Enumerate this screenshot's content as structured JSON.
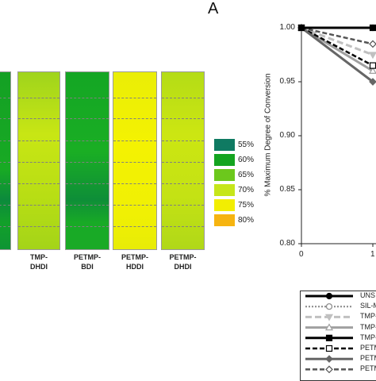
{
  "panel_label": "A",
  "chart_data": [
    {
      "type": "heatmap",
      "columns": [
        {
          "label": "",
          "stops": [
            [
              "#14a024",
              0
            ],
            [
              "#18aa24",
              0.55
            ],
            [
              "#0c8a3c",
              0.72
            ],
            [
              "#12a02a",
              0.85
            ],
            [
              "#0e9434",
              1
            ]
          ]
        },
        {
          "label": "TMP-\nDHDI",
          "stops": [
            [
              "#9fd41c",
              0
            ],
            [
              "#c8e614",
              0.35
            ],
            [
              "#b8de14",
              0.7
            ],
            [
              "#a4d418",
              1
            ]
          ]
        },
        {
          "label": "PETMP-\nBDI",
          "stops": [
            [
              "#14a624",
              0
            ],
            [
              "#1aae24",
              0.45
            ],
            [
              "#0e8e38",
              0.72
            ],
            [
              "#18aa26",
              0.85
            ],
            [
              "#1aaa26",
              1
            ]
          ]
        },
        {
          "label": "PETMP-\nHDDI",
          "stops": [
            [
              "#eaee06",
              0
            ],
            [
              "#f4f202",
              0.4
            ],
            [
              "#f0f004",
              0.8
            ],
            [
              "#e8ec06",
              1
            ]
          ]
        },
        {
          "label": "PETMP-\nDHDI",
          "stops": [
            [
              "#b4dc16",
              0
            ],
            [
              "#cce612",
              0.35
            ],
            [
              "#c4e214",
              0.7
            ],
            [
              "#b0d818",
              1
            ]
          ]
        }
      ],
      "legend": [
        {
          "label": "55%",
          "color": "#0f7a62"
        },
        {
          "label": "60%",
          "color": "#14a420"
        },
        {
          "label": "65%",
          "color": "#6cc81c"
        },
        {
          "label": "70%",
          "color": "#c6e61a"
        },
        {
          "label": "75%",
          "color": "#f2ee02"
        },
        {
          "label": "80%",
          "color": "#f6b410"
        }
      ]
    },
    {
      "type": "line",
      "ylabel": "% Maximum Degree of Conversion",
      "ylim": [
        0.8,
        1.0
      ],
      "y_ticks": [
        "1.00",
        "0.95",
        "0.90",
        "0.85",
        "0.80"
      ],
      "xlim": [
        0,
        1
      ],
      "x_ticks": [
        "0",
        "1"
      ],
      "series": [
        {
          "name": "UNS",
          "x": [
            0,
            1
          ],
          "values": [
            1.0,
            1.0
          ],
          "color": "#000000",
          "dash": "",
          "width": 3,
          "marker": "circle-filled"
        },
        {
          "name": "SIL-M",
          "x": [
            0,
            1
          ],
          "values": [
            1.0,
            1.0
          ],
          "color": "#888888",
          "dash": "2,2",
          "width": 2,
          "marker": "circle-open"
        },
        {
          "name": "TMP-",
          "x": [
            0,
            1
          ],
          "values": [
            1.0,
            0.975
          ],
          "color": "#c0c0c0",
          "dash": "8,4",
          "width": 3,
          "marker": "triangle-filled"
        },
        {
          "name": "TMP-",
          "x": [
            0,
            1
          ],
          "values": [
            1.0,
            0.96
          ],
          "color": "#a0a0a0",
          "dash": "",
          "width": 3,
          "marker": "triangle-open"
        },
        {
          "name": "TMP-",
          "x": [
            0,
            1
          ],
          "values": [
            1.0,
            1.0
          ],
          "color": "#000000",
          "dash": "",
          "width": 3,
          "marker": "square-filled"
        },
        {
          "name": "PETM",
          "x": [
            0,
            1
          ],
          "values": [
            1.0,
            0.965
          ],
          "color": "#000000",
          "dash": "6,3",
          "width": 2.5,
          "marker": "square-open"
        },
        {
          "name": "PETM",
          "x": [
            0,
            1
          ],
          "values": [
            1.0,
            0.95
          ],
          "color": "#666666",
          "dash": "",
          "width": 3,
          "marker": "diamond-filled"
        },
        {
          "name": "PETM",
          "x": [
            0,
            1
          ],
          "values": [
            1.0,
            0.985
          ],
          "color": "#555555",
          "dash": "6,3",
          "width": 2.5,
          "marker": "diamond-open"
        }
      ]
    }
  ]
}
